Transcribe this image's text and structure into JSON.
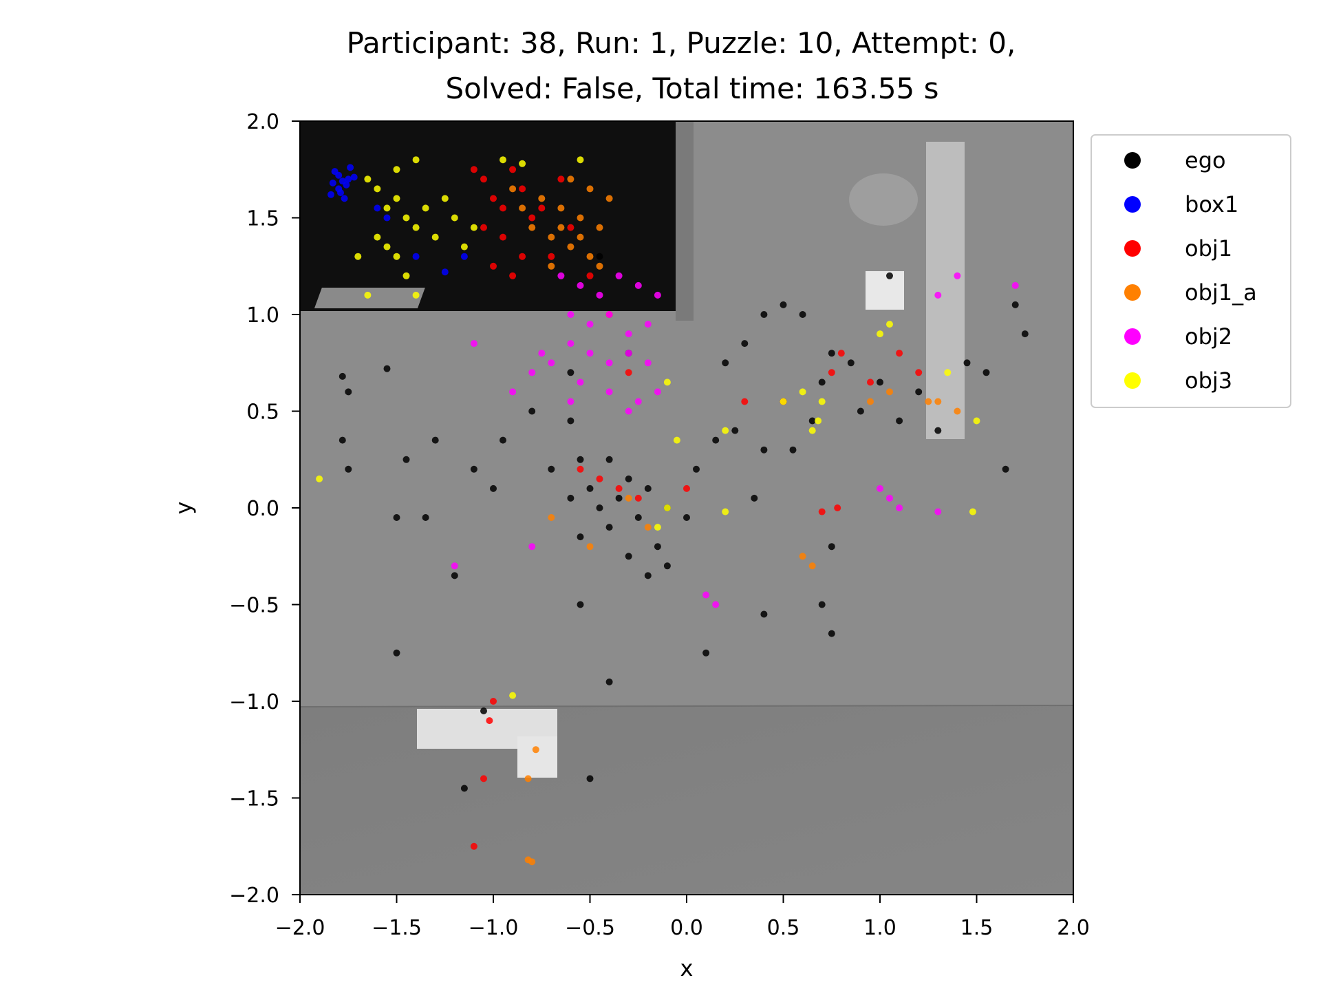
{
  "chart_data": {
    "type": "scatter",
    "title_line1": "Participant: 38, Run: 1, Puzzle: 10, Attempt: 0,",
    "title_line2": "Solved: False, Total time: 163.55 s",
    "xlabel": "x",
    "ylabel": "y",
    "xlim": [
      -2.0,
      2.0
    ],
    "ylim": [
      -2.0,
      2.0
    ],
    "x_ticks": [
      "−2.0",
      "−1.5",
      "−1.0",
      "−0.5",
      "0.0",
      "0.5",
      "1.0",
      "1.5",
      "2.0"
    ],
    "y_ticks": [
      "2.0",
      "1.5",
      "1.0",
      "0.5",
      "0.0",
      "−0.5",
      "−1.0",
      "−1.5",
      "−2.0"
    ],
    "grid": false,
    "legend_position": "outside-top-right",
    "series": [
      {
        "name": "ego",
        "color": "#000000",
        "points": [
          [
            -1.78,
            0.68
          ],
          [
            -1.75,
            0.6
          ],
          [
            -1.78,
            0.35
          ],
          [
            -1.75,
            0.2
          ],
          [
            -1.55,
            0.72
          ],
          [
            -1.45,
            0.25
          ],
          [
            -1.35,
            -0.05
          ],
          [
            -1.5,
            -0.05
          ],
          [
            -1.3,
            0.35
          ],
          [
            -1.1,
            0.2
          ],
          [
            -0.95,
            0.35
          ],
          [
            -0.8,
            0.5
          ],
          [
            -0.6,
            0.45
          ],
          [
            -0.55,
            0.25
          ],
          [
            -0.5,
            0.1
          ],
          [
            -0.45,
            0.0
          ],
          [
            -0.4,
            -0.1
          ],
          [
            -0.35,
            0.05
          ],
          [
            -0.3,
            0.15
          ],
          [
            -0.25,
            -0.05
          ],
          [
            -0.2,
            0.1
          ],
          [
            -0.15,
            -0.2
          ],
          [
            -0.1,
            0.0
          ],
          [
            -0.55,
            -0.15
          ],
          [
            -0.6,
            0.05
          ],
          [
            -0.7,
            0.2
          ],
          [
            -0.4,
            0.25
          ],
          [
            -0.3,
            -0.25
          ],
          [
            -0.2,
            -0.35
          ],
          [
            -0.1,
            -0.3
          ],
          [
            0.05,
            0.2
          ],
          [
            0.15,
            0.35
          ],
          [
            0.25,
            0.4
          ],
          [
            0.4,
            0.3
          ],
          [
            0.5,
            0.55
          ],
          [
            0.55,
            0.3
          ],
          [
            0.65,
            0.45
          ],
          [
            0.7,
            0.65
          ],
          [
            0.75,
            0.8
          ],
          [
            0.85,
            0.75
          ],
          [
            0.9,
            0.5
          ],
          [
            0.75,
            -0.2
          ],
          [
            0.7,
            -0.5
          ],
          [
            0.6,
            1.0
          ],
          [
            0.5,
            1.05
          ],
          [
            0.4,
            1.0
          ],
          [
            0.3,
            0.85
          ],
          [
            0.2,
            0.75
          ],
          [
            1.05,
            1.2
          ],
          [
            1.0,
            0.65
          ],
          [
            1.1,
            0.45
          ],
          [
            1.3,
            0.4
          ],
          [
            1.55,
            0.7
          ],
          [
            1.65,
            0.2
          ],
          [
            1.75,
            0.9
          ],
          [
            1.7,
            1.05
          ],
          [
            -1.5,
            -0.75
          ],
          [
            -1.05,
            -1.05
          ],
          [
            -1.15,
            -1.45
          ],
          [
            -0.5,
            -1.4
          ],
          [
            -0.4,
            -0.9
          ],
          [
            -0.55,
            -0.5
          ],
          [
            0.1,
            -0.75
          ],
          [
            0.4,
            -0.55
          ],
          [
            0.75,
            -0.65
          ],
          [
            -0.45,
            1.3
          ],
          [
            -0.3,
            0.8
          ],
          [
            -0.6,
            0.7
          ],
          [
            -1.0,
            0.1
          ],
          [
            -1.2,
            -0.35
          ],
          [
            0.35,
            0.05
          ],
          [
            0.0,
            -0.05
          ],
          [
            1.45,
            0.75
          ],
          [
            1.2,
            0.6
          ]
        ]
      },
      {
        "name": "box1",
        "color": "#0000ff",
        "points": [
          [
            -1.82,
            1.74
          ],
          [
            -1.8,
            1.72
          ],
          [
            -1.78,
            1.69
          ],
          [
            -1.76,
            1.67
          ],
          [
            -1.8,
            1.65
          ],
          [
            -1.84,
            1.62
          ],
          [
            -1.77,
            1.6
          ],
          [
            -1.74,
            1.76
          ],
          [
            -1.72,
            1.71
          ],
          [
            -1.79,
            1.63
          ],
          [
            -1.83,
            1.68
          ],
          [
            -1.75,
            1.7
          ],
          [
            -1.6,
            1.55
          ],
          [
            -1.55,
            1.5
          ],
          [
            -1.4,
            1.3
          ],
          [
            -1.25,
            1.22
          ],
          [
            -1.15,
            1.3
          ]
        ]
      },
      {
        "name": "obj1",
        "color": "#ff0000",
        "points": [
          [
            -1.1,
            1.75
          ],
          [
            -1.05,
            1.7
          ],
          [
            -1.0,
            1.6
          ],
          [
            -0.95,
            1.55
          ],
          [
            -0.9,
            1.75
          ],
          [
            -0.85,
            1.65
          ],
          [
            -0.8,
            1.5
          ],
          [
            -1.05,
            1.45
          ],
          [
            -0.95,
            1.4
          ],
          [
            -0.75,
            1.55
          ],
          [
            -0.7,
            1.3
          ],
          [
            -0.85,
            1.3
          ],
          [
            -0.65,
            1.7
          ],
          [
            -0.6,
            1.45
          ],
          [
            -1.0,
            1.25
          ],
          [
            -0.9,
            1.2
          ],
          [
            -0.5,
            1.2
          ],
          [
            -0.4,
            1.0
          ],
          [
            -0.3,
            0.7
          ],
          [
            -0.55,
            0.2
          ],
          [
            -0.45,
            0.15
          ],
          [
            -0.35,
            0.1
          ],
          [
            -0.25,
            0.05
          ],
          [
            0.0,
            0.1
          ],
          [
            0.3,
            0.55
          ],
          [
            0.5,
            0.55
          ],
          [
            0.75,
            0.7
          ],
          [
            0.8,
            0.8
          ],
          [
            0.95,
            0.65
          ],
          [
            1.1,
            0.8
          ],
          [
            1.2,
            0.7
          ],
          [
            0.78,
            0.0
          ],
          [
            0.7,
            -0.02
          ],
          [
            -1.0,
            -1.0
          ],
          [
            -1.02,
            -1.1
          ],
          [
            -1.05,
            -1.4
          ],
          [
            -1.1,
            -1.75
          ]
        ]
      },
      {
        "name": "obj1_a",
        "color": "#ff8000",
        "points": [
          [
            -0.9,
            1.65
          ],
          [
            -0.85,
            1.55
          ],
          [
            -0.8,
            1.45
          ],
          [
            -0.75,
            1.6
          ],
          [
            -0.7,
            1.4
          ],
          [
            -0.65,
            1.55
          ],
          [
            -0.6,
            1.35
          ],
          [
            -0.55,
            1.5
          ],
          [
            -0.5,
            1.3
          ],
          [
            -0.45,
            1.45
          ],
          [
            -0.4,
            1.6
          ],
          [
            -0.5,
            1.65
          ],
          [
            -0.6,
            1.7
          ],
          [
            -0.7,
            1.25
          ],
          [
            -0.45,
            1.25
          ],
          [
            -0.55,
            1.4
          ],
          [
            -0.65,
            1.45
          ],
          [
            -0.3,
            0.05
          ],
          [
            -0.2,
            -0.1
          ],
          [
            -0.7,
            -0.05
          ],
          [
            -0.5,
            -0.2
          ],
          [
            0.6,
            -0.25
          ],
          [
            0.65,
            -0.3
          ],
          [
            0.95,
            0.55
          ],
          [
            1.05,
            0.6
          ],
          [
            1.3,
            0.55
          ],
          [
            1.4,
            0.5
          ],
          [
            1.25,
            0.55
          ],
          [
            -0.82,
            -1.4
          ],
          [
            -0.78,
            -1.25
          ],
          [
            -0.82,
            -1.82
          ],
          [
            -0.8,
            -1.83
          ]
        ]
      },
      {
        "name": "obj2",
        "color": "#ff00ff",
        "points": [
          [
            -0.65,
            1.2
          ],
          [
            -0.55,
            1.15
          ],
          [
            -0.45,
            1.1
          ],
          [
            -0.35,
            1.2
          ],
          [
            -0.25,
            1.15
          ],
          [
            -0.15,
            1.1
          ],
          [
            -0.6,
            1.0
          ],
          [
            -0.5,
            0.95
          ],
          [
            -0.4,
            1.0
          ],
          [
            -0.3,
            0.9
          ],
          [
            -0.2,
            0.95
          ],
          [
            -0.6,
            0.85
          ],
          [
            -0.5,
            0.8
          ],
          [
            -0.4,
            0.75
          ],
          [
            -0.3,
            0.8
          ],
          [
            -0.2,
            0.75
          ],
          [
            -0.15,
            0.6
          ],
          [
            -0.25,
            0.55
          ],
          [
            -0.7,
            0.75
          ],
          [
            -0.8,
            0.7
          ],
          [
            -0.9,
            0.6
          ],
          [
            -1.1,
            0.85
          ],
          [
            -0.6,
            0.55
          ],
          [
            -0.4,
            0.6
          ],
          [
            -0.3,
            0.5
          ],
          [
            0.1,
            -0.45
          ],
          [
            0.15,
            -0.5
          ],
          [
            -1.2,
            -0.3
          ],
          [
            -0.8,
            -0.2
          ],
          [
            1.0,
            0.1
          ],
          [
            1.05,
            0.05
          ],
          [
            1.1,
            0.0
          ],
          [
            1.3,
            -0.02
          ],
          [
            1.3,
            1.1
          ],
          [
            1.4,
            1.2
          ],
          [
            1.7,
            1.15
          ],
          [
            -0.75,
            0.8
          ],
          [
            -0.55,
            0.65
          ]
        ]
      },
      {
        "name": "obj3",
        "color": "#ffff00",
        "points": [
          [
            -1.65,
            1.7
          ],
          [
            -1.6,
            1.65
          ],
          [
            -1.55,
            1.55
          ],
          [
            -1.5,
            1.6
          ],
          [
            -1.45,
            1.5
          ],
          [
            -1.4,
            1.45
          ],
          [
            -1.35,
            1.55
          ],
          [
            -1.3,
            1.4
          ],
          [
            -1.25,
            1.6
          ],
          [
            -1.2,
            1.5
          ],
          [
            -1.15,
            1.35
          ],
          [
            -1.1,
            1.45
          ],
          [
            -1.6,
            1.4
          ],
          [
            -1.55,
            1.35
          ],
          [
            -1.5,
            1.3
          ],
          [
            -1.45,
            1.2
          ],
          [
            -1.5,
            1.75
          ],
          [
            -1.4,
            1.8
          ],
          [
            -1.7,
            1.3
          ],
          [
            -1.65,
            1.1
          ],
          [
            -1.4,
            1.1
          ],
          [
            -0.95,
            1.8
          ],
          [
            -0.85,
            1.78
          ],
          [
            -0.55,
            1.8
          ],
          [
            -0.1,
            0.65
          ],
          [
            -0.05,
            0.35
          ],
          [
            -0.1,
            0.0
          ],
          [
            -0.15,
            -0.1
          ],
          [
            0.2,
            0.4
          ],
          [
            0.5,
            0.55
          ],
          [
            0.6,
            0.6
          ],
          [
            0.7,
            0.55
          ],
          [
            0.68,
            0.45
          ],
          [
            0.65,
            0.4
          ],
          [
            1.0,
            0.9
          ],
          [
            1.05,
            0.95
          ],
          [
            1.35,
            0.7
          ],
          [
            1.5,
            0.45
          ],
          [
            -1.9,
            0.15
          ],
          [
            -0.9,
            -0.97
          ],
          [
            0.2,
            -0.02
          ],
          [
            1.48,
            -0.02
          ]
        ]
      }
    ]
  }
}
